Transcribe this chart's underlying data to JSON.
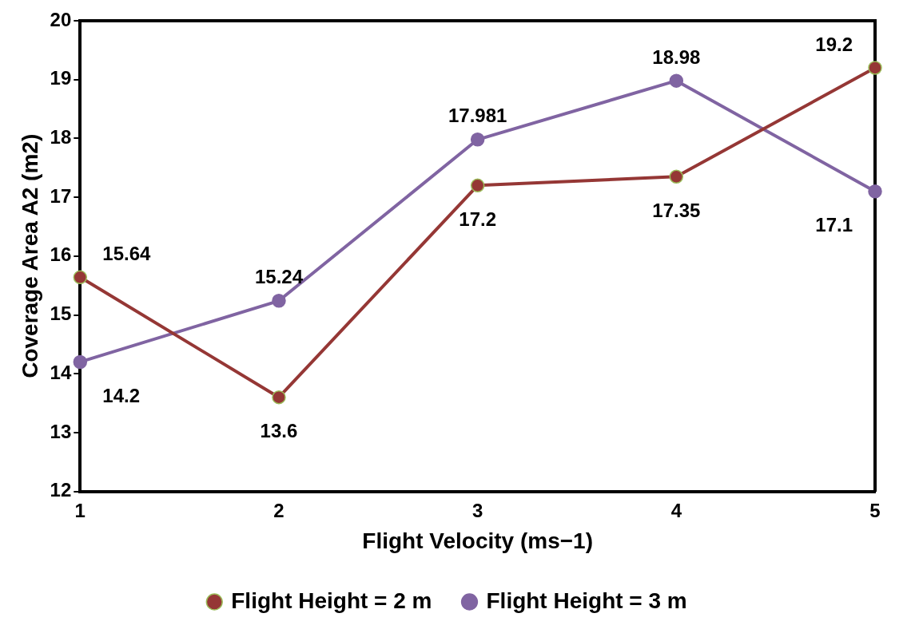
{
  "chart_data": {
    "type": "line",
    "xlabel": "Flight Velocity (ms−1)",
    "ylabel": "Coverage Area A2 (m2)",
    "x": [
      1,
      2,
      3,
      4,
      5
    ],
    "xlim": [
      1,
      5
    ],
    "xticks": [
      1,
      2,
      3,
      4,
      5
    ],
    "ylim": [
      12,
      20
    ],
    "yticks": [
      12,
      13,
      14,
      15,
      16,
      17,
      18,
      19,
      20
    ],
    "series": [
      {
        "name": "Flight Height = 2 m",
        "color": "#953735",
        "values": [
          15.64,
          13.6,
          17.2,
          17.35,
          19.2
        ]
      },
      {
        "name": "Flight Height = 3 m",
        "color": "#8064a2",
        "values": [
          14.2,
          15.24,
          17.981,
          18.98,
          17.1
        ]
      }
    ],
    "data_labels": true,
    "grid": false,
    "legend": "bottom",
    "marker": "circle",
    "line_style": "solid"
  }
}
